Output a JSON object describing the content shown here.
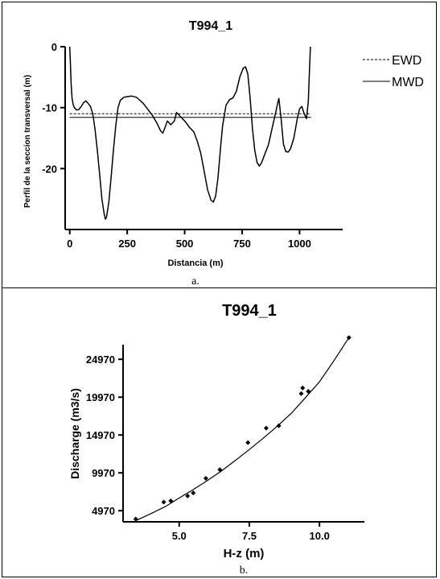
{
  "chart_data": [
    {
      "panel": "a",
      "type": "line",
      "title": "T994_1",
      "xlabel": "Distancia (m)",
      "ylabel": "Perfil de la seccion transversal (m)",
      "xlim": [
        -20,
        1100
      ],
      "ylim": [
        -30,
        0
      ],
      "x_ticks": [
        0,
        250,
        500,
        750,
        1000
      ],
      "y_ticks": [
        0,
        -10,
        -20
      ],
      "grid": false,
      "legend_position": "right",
      "caption": "a.",
      "series": [
        {
          "name": "EWD",
          "style": "dashed",
          "points": [
            [
              0,
              -11.0
            ],
            [
              1050,
              -11.0
            ]
          ]
        },
        {
          "name": "MWD",
          "style": "solid",
          "points": [
            [
              0,
              -11.6
            ],
            [
              1050,
              -11.6
            ]
          ]
        }
      ],
      "profile": {
        "style": "solid",
        "points": [
          [
            0,
            0
          ],
          [
            3,
            -3
          ],
          [
            6,
            -6
          ],
          [
            10,
            -8.5
          ],
          [
            15,
            -9.5
          ],
          [
            20,
            -10
          ],
          [
            30,
            -10.4
          ],
          [
            40,
            -10.3
          ],
          [
            50,
            -9.8
          ],
          [
            60,
            -9.2
          ],
          [
            70,
            -8.9
          ],
          [
            80,
            -9.3
          ],
          [
            90,
            -9.8
          ],
          [
            100,
            -11
          ],
          [
            110,
            -13.5
          ],
          [
            120,
            -17
          ],
          [
            130,
            -21
          ],
          [
            140,
            -25
          ],
          [
            150,
            -27.5
          ],
          [
            155,
            -28.3
          ],
          [
            160,
            -28
          ],
          [
            170,
            -25.5
          ],
          [
            180,
            -21.5
          ],
          [
            190,
            -17
          ],
          [
            200,
            -13
          ],
          [
            210,
            -10
          ],
          [
            220,
            -8.8
          ],
          [
            235,
            -8.3
          ],
          [
            250,
            -8.2
          ],
          [
            270,
            -8.1
          ],
          [
            290,
            -8.3
          ],
          [
            305,
            -8.8
          ],
          [
            320,
            -9.3
          ],
          [
            340,
            -10.3
          ],
          [
            360,
            -11.3
          ],
          [
            380,
            -12.6
          ],
          [
            395,
            -13.8
          ],
          [
            405,
            -14.2
          ],
          [
            415,
            -13.2
          ],
          [
            425,
            -12.2
          ],
          [
            440,
            -12.8
          ],
          [
            455,
            -12.2
          ],
          [
            465,
            -10.8
          ],
          [
            475,
            -11.2
          ],
          [
            490,
            -11.8
          ],
          [
            505,
            -12.4
          ],
          [
            520,
            -13.2
          ],
          [
            540,
            -14
          ],
          [
            555,
            -15.5
          ],
          [
            570,
            -17.5
          ],
          [
            585,
            -20.5
          ],
          [
            600,
            -23.5
          ],
          [
            615,
            -25.2
          ],
          [
            625,
            -25.5
          ],
          [
            635,
            -24.5
          ],
          [
            645,
            -21.5
          ],
          [
            655,
            -17
          ],
          [
            665,
            -13
          ],
          [
            680,
            -9.6
          ],
          [
            695,
            -8.7
          ],
          [
            710,
            -8.4
          ],
          [
            725,
            -7.3
          ],
          [
            740,
            -5
          ],
          [
            755,
            -3.5
          ],
          [
            765,
            -3.3
          ],
          [
            775,
            -4.5
          ],
          [
            785,
            -8.5
          ],
          [
            795,
            -13.5
          ],
          [
            805,
            -17
          ],
          [
            815,
            -19
          ],
          [
            825,
            -19.6
          ],
          [
            835,
            -19
          ],
          [
            850,
            -17.5
          ],
          [
            865,
            -16
          ],
          [
            880,
            -13.5
          ],
          [
            895,
            -11
          ],
          [
            905,
            -9.2
          ],
          [
            910,
            -8.5
          ],
          [
            920,
            -12
          ],
          [
            930,
            -16
          ],
          [
            940,
            -17.2
          ],
          [
            950,
            -17.3
          ],
          [
            960,
            -16.8
          ],
          [
            975,
            -15
          ],
          [
            990,
            -11.8
          ],
          [
            1000,
            -10.2
          ],
          [
            1010,
            -9.8
          ],
          [
            1020,
            -11
          ],
          [
            1030,
            -11.8
          ],
          [
            1038,
            -9
          ],
          [
            1043,
            -4
          ],
          [
            1047,
            0
          ]
        ]
      }
    },
    {
      "panel": "b",
      "type": "scatter",
      "title": "T994_1",
      "xlabel": "H-z (m)",
      "ylabel": "Discharge (m3/s)",
      "xlim": [
        3.0,
        11.6
      ],
      "ylim": [
        3500,
        28500
      ],
      "x_ticks": [
        "5.0",
        "7.5",
        "10.0"
      ],
      "x_tick_values": [
        5.0,
        7.5,
        10.0
      ],
      "y_ticks": [
        "4970",
        "9970",
        "14970",
        "19970",
        "24970"
      ],
      "y_tick_values": [
        4970,
        9970,
        14970,
        19970,
        24970
      ],
      "grid": false,
      "caption": "b.",
      "points": [
        [
          3.45,
          3870
        ],
        [
          4.45,
          6110
        ],
        [
          4.7,
          6270
        ],
        [
          5.3,
          6920
        ],
        [
          5.5,
          7310
        ],
        [
          5.95,
          9240
        ],
        [
          6.45,
          10390
        ],
        [
          7.45,
          13960
        ],
        [
          8.1,
          15880
        ],
        [
          8.55,
          16180
        ],
        [
          9.35,
          20440
        ],
        [
          9.4,
          21180
        ],
        [
          9.6,
          20730
        ],
        [
          11.05,
          27840
        ]
      ],
      "fit_curve": [
        [
          3.45,
          3650
        ],
        [
          4.0,
          4600
        ],
        [
          4.5,
          5500
        ],
        [
          5.0,
          6650
        ],
        [
          5.5,
          7750
        ],
        [
          6.0,
          8950
        ],
        [
          6.5,
          10200
        ],
        [
          7.0,
          11600
        ],
        [
          7.5,
          13050
        ],
        [
          8.0,
          14550
        ],
        [
          8.5,
          16150
        ],
        [
          9.0,
          17850
        ],
        [
          9.5,
          19900
        ],
        [
          10.0,
          22000
        ],
        [
          10.5,
          24700
        ],
        [
          11.05,
          27840
        ]
      ]
    }
  ]
}
